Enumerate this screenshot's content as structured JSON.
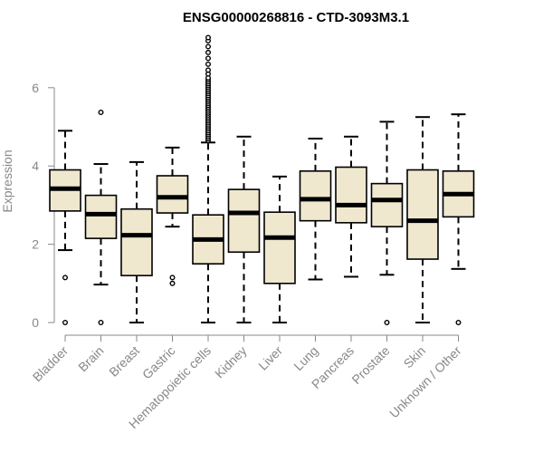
{
  "chart_data": {
    "type": "boxplot",
    "title": "ENSG00000268816 - CTD-3093M3.1",
    "xlabel": "",
    "ylabel": "Expression",
    "ylim": [
      0,
      7.5
    ],
    "yticks": [
      0,
      2,
      4,
      6
    ],
    "grid": false,
    "colors": {
      "box_fill": "#efe8cf",
      "stroke": "#000000",
      "axis": "#888888"
    },
    "categories": [
      "Bladder",
      "Brain",
      "Breast",
      "Gastric",
      "Hematopoietic cells",
      "Kidney",
      "Liver",
      "Lung",
      "Pancreas",
      "Prostate",
      "Skin",
      "Unknown / Other"
    ],
    "boxes": [
      {
        "whisker_low": 1.85,
        "q1": 2.85,
        "median": 3.42,
        "q3": 3.9,
        "whisker_high": 4.9,
        "outliers": [
          1.15,
          0
        ]
      },
      {
        "whisker_low": 0.97,
        "q1": 2.15,
        "median": 2.77,
        "q3": 3.25,
        "whisker_high": 4.05,
        "outliers": [
          5.37,
          0
        ]
      },
      {
        "whisker_low": 0,
        "q1": 1.2,
        "median": 2.23,
        "q3": 2.9,
        "whisker_high": 4.1,
        "outliers": []
      },
      {
        "whisker_low": 2.45,
        "q1": 2.8,
        "median": 3.2,
        "q3": 3.75,
        "whisker_high": 4.47,
        "outliers": [
          1.15,
          1.0
        ]
      },
      {
        "whisker_low": 0,
        "q1": 1.5,
        "median": 2.12,
        "q3": 2.75,
        "whisker_high": 4.6,
        "outliers": [
          4.65,
          4.7,
          4.75,
          4.8,
          4.85,
          4.9,
          4.95,
          5.0,
          5.05,
          5.1,
          5.15,
          5.2,
          5.25,
          5.3,
          5.35,
          5.4,
          5.45,
          5.5,
          5.55,
          5.6,
          5.65,
          5.7,
          5.75,
          5.8,
          5.85,
          5.9,
          5.95,
          6.0,
          6.05,
          6.1,
          6.15,
          6.2,
          6.25,
          6.35,
          6.45,
          6.6,
          6.75,
          6.9,
          7.05,
          7.2,
          7.28
        ]
      },
      {
        "whisker_low": 0,
        "q1": 1.8,
        "median": 2.8,
        "q3": 3.4,
        "whisker_high": 4.75,
        "outliers": []
      },
      {
        "whisker_low": 0,
        "q1": 1.0,
        "median": 2.17,
        "q3": 2.82,
        "whisker_high": 3.73,
        "outliers": []
      },
      {
        "whisker_low": 1.1,
        "q1": 2.6,
        "median": 3.15,
        "q3": 3.87,
        "whisker_high": 4.7,
        "outliers": []
      },
      {
        "whisker_low": 1.17,
        "q1": 2.55,
        "median": 3.0,
        "q3": 3.97,
        "whisker_high": 4.75,
        "outliers": []
      },
      {
        "whisker_low": 1.22,
        "q1": 2.45,
        "median": 3.13,
        "q3": 3.55,
        "whisker_high": 5.13,
        "outliers": [
          0
        ]
      },
      {
        "whisker_low": 0,
        "q1": 1.62,
        "median": 2.6,
        "q3": 3.9,
        "whisker_high": 5.25,
        "outliers": []
      },
      {
        "whisker_low": 1.37,
        "q1": 2.7,
        "median": 3.28,
        "q3": 3.87,
        "whisker_high": 5.32,
        "outliers": [
          0
        ]
      }
    ]
  }
}
